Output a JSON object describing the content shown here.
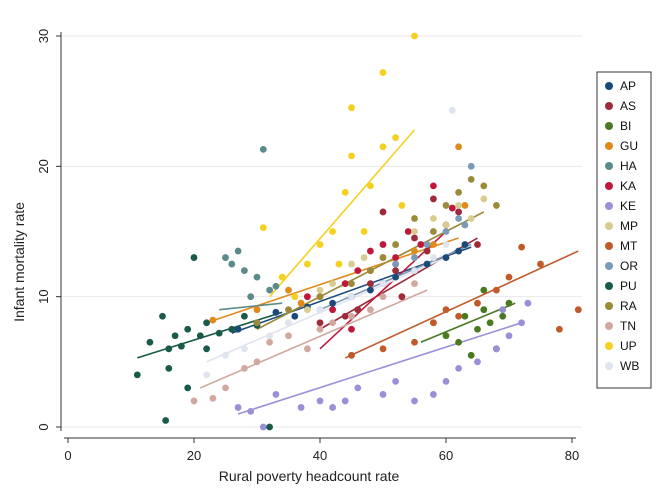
{
  "chart_data": {
    "type": "scatter",
    "xlabel": "Rural poverty headcount rate",
    "ylabel": "Infant mortality rate",
    "xlim": [
      0,
      80
    ],
    "ylim": [
      0,
      30
    ],
    "x_ticks": [
      "0",
      "20",
      "40",
      "60",
      "80"
    ],
    "y_ticks": [
      "0",
      "10",
      "20",
      "30"
    ],
    "grid": true,
    "legend_position": "right",
    "series": [
      {
        "name": "AP",
        "color": "#1a4a7a",
        "points": [
          [
            27,
            7.5
          ],
          [
            30,
            8
          ],
          [
            33,
            8.8
          ],
          [
            36,
            8.5
          ],
          [
            38,
            9.2
          ],
          [
            42,
            9.5
          ],
          [
            45,
            10
          ],
          [
            48,
            10.5
          ],
          [
            50,
            11
          ],
          [
            52,
            11.5
          ],
          [
            55,
            12
          ],
          [
            57,
            12.5
          ],
          [
            60,
            13
          ],
          [
            62,
            13.5
          ],
          [
            63,
            14
          ]
        ],
        "fit": [
          [
            26,
            7.2
          ],
          [
            64,
            13.8
          ]
        ]
      },
      {
        "name": "AS",
        "color": "#9e2a3a",
        "points": [
          [
            40,
            8
          ],
          [
            44,
            8.5
          ],
          [
            46,
            9
          ],
          [
            48,
            11
          ],
          [
            50,
            16.5
          ],
          [
            52,
            12
          ],
          [
            53,
            10
          ],
          [
            55,
            14.5
          ],
          [
            57,
            13.5
          ],
          [
            58,
            17.5
          ],
          [
            60,
            15.5
          ],
          [
            62,
            16.5
          ],
          [
            65,
            14
          ]
        ],
        "fit": [
          [
            40,
            7.5
          ],
          [
            65,
            14.5
          ]
        ]
      },
      {
        "name": "BI",
        "color": "#4a7a20",
        "points": [
          [
            58,
            8
          ],
          [
            60,
            7
          ],
          [
            62,
            6.5
          ],
          [
            63,
            8.5
          ],
          [
            64,
            5.5
          ],
          [
            65,
            7.5
          ],
          [
            66,
            9
          ],
          [
            67,
            8
          ],
          [
            68,
            6
          ],
          [
            69,
            8.5
          ],
          [
            70,
            9.5
          ],
          [
            66,
            10.5
          ]
        ],
        "fit": [
          [
            56,
            6.5
          ],
          [
            71,
            9.5
          ]
        ]
      },
      {
        "name": "GU",
        "color": "#e08a1a",
        "points": [
          [
            23,
            8.2
          ],
          [
            30,
            9
          ],
          [
            35,
            10.5
          ],
          [
            37,
            9.5
          ],
          [
            40,
            10
          ],
          [
            44,
            11
          ],
          [
            48,
            12
          ],
          [
            52,
            12.5
          ],
          [
            55,
            13.5
          ],
          [
            58,
            14
          ],
          [
            62,
            21.5
          ],
          [
            63,
            17
          ]
        ],
        "fit": [
          [
            22,
            8
          ],
          [
            62,
            14.5
          ]
        ]
      },
      {
        "name": "HA",
        "color": "#5a8a8a",
        "points": [
          [
            25,
            13
          ],
          [
            26,
            12.5
          ],
          [
            28,
            12
          ],
          [
            30,
            11.5
          ],
          [
            31,
            21.3
          ],
          [
            32,
            10.5
          ],
          [
            29,
            10
          ],
          [
            33,
            10.8
          ],
          [
            27,
            13.5
          ]
        ],
        "fit": [
          [
            24,
            9
          ],
          [
            34,
            9.5
          ]
        ]
      },
      {
        "name": "KA",
        "color": "#c0183a",
        "points": [
          [
            38,
            10
          ],
          [
            42,
            9
          ],
          [
            44,
            11
          ],
          [
            46,
            12
          ],
          [
            48,
            13.5
          ],
          [
            50,
            14
          ],
          [
            52,
            13
          ],
          [
            54,
            15
          ],
          [
            56,
            14
          ],
          [
            58,
            18.5
          ],
          [
            61,
            16.8
          ],
          [
            45,
            7.5
          ]
        ],
        "fit": [
          [
            40,
            6
          ],
          [
            60,
            15
          ]
        ]
      },
      {
        "name": "KE",
        "color": "#9a90d8",
        "points": [
          [
            27,
            1.5
          ],
          [
            29,
            1.2
          ],
          [
            31,
            0
          ],
          [
            33,
            2.5
          ],
          [
            37,
            1.5
          ],
          [
            40,
            2
          ],
          [
            42,
            1.5
          ],
          [
            44,
            2
          ],
          [
            46,
            3
          ],
          [
            50,
            2.5
          ],
          [
            52,
            3.5
          ],
          [
            55,
            2
          ],
          [
            58,
            2.5
          ],
          [
            60,
            3.5
          ],
          [
            62,
            4.5
          ],
          [
            65,
            5
          ],
          [
            68,
            6
          ],
          [
            70,
            7
          ],
          [
            72,
            8
          ],
          [
            73,
            9.5
          ],
          [
            69,
            9
          ]
        ],
        "fit": [
          [
            27,
            1
          ],
          [
            72,
            8
          ]
        ]
      },
      {
        "name": "MP",
        "color": "#d8cc90",
        "points": [
          [
            35,
            8
          ],
          [
            38,
            9
          ],
          [
            40,
            10.5
          ],
          [
            42,
            11
          ],
          [
            45,
            12.5
          ],
          [
            47,
            13
          ],
          [
            50,
            13
          ],
          [
            52,
            14
          ],
          [
            55,
            15
          ],
          [
            58,
            16
          ],
          [
            60,
            15.5
          ],
          [
            62,
            17
          ],
          [
            64,
            16
          ],
          [
            66,
            17.5
          ]
        ],
        "fit": [
          [
            34,
            8.5
          ],
          [
            66,
            16.5
          ]
        ]
      },
      {
        "name": "MT",
        "color": "#c05a2a",
        "points": [
          [
            45,
            5.5
          ],
          [
            50,
            6
          ],
          [
            55,
            6.5
          ],
          [
            58,
            8
          ],
          [
            60,
            9
          ],
          [
            62,
            8.5
          ],
          [
            65,
            9.5
          ],
          [
            68,
            10.5
          ],
          [
            70,
            11.5
          ],
          [
            72,
            13.8
          ],
          [
            75,
            12.5
          ],
          [
            78,
            7.5
          ],
          [
            81,
            9
          ]
        ],
        "fit": [
          [
            44,
            5.3
          ],
          [
            81,
            13.5
          ]
        ]
      },
      {
        "name": "OR",
        "color": "#7a9ab8",
        "points": [
          [
            40,
            9
          ],
          [
            45,
            10
          ],
          [
            50,
            11
          ],
          [
            52,
            12.5
          ],
          [
            55,
            13
          ],
          [
            57,
            14
          ],
          [
            60,
            15
          ],
          [
            62,
            16
          ],
          [
            63,
            15.5
          ],
          [
            64,
            20
          ]
        ],
        "fit": [
          [
            40,
            9
          ],
          [
            64,
            14
          ]
        ]
      },
      {
        "name": "PU",
        "color": "#1a5a4a",
        "points": [
          [
            11,
            4
          ],
          [
            13,
            6.5
          ],
          [
            15,
            8.5
          ],
          [
            15.5,
            0.5
          ],
          [
            16,
            6
          ],
          [
            17,
            7
          ],
          [
            18,
            6.2
          ],
          [
            19,
            7.5
          ],
          [
            20,
            13
          ],
          [
            21,
            7
          ],
          [
            22,
            8
          ],
          [
            24,
            7.2
          ],
          [
            26,
            7.5
          ],
          [
            28,
            8.5
          ],
          [
            30,
            7.8
          ],
          [
            32,
            0
          ],
          [
            22,
            6
          ],
          [
            16,
            4.5
          ],
          [
            19,
            3
          ]
        ],
        "fit": [
          [
            11,
            5.3
          ],
          [
            34,
            8.8
          ]
        ]
      },
      {
        "name": "RA",
        "color": "#9a8a3a",
        "points": [
          [
            30,
            8
          ],
          [
            35,
            9
          ],
          [
            40,
            10
          ],
          [
            45,
            11
          ],
          [
            48,
            12
          ],
          [
            50,
            13
          ],
          [
            52,
            14
          ],
          [
            55,
            16
          ],
          [
            58,
            15
          ],
          [
            60,
            17
          ],
          [
            62,
            18
          ],
          [
            64,
            19
          ],
          [
            66,
            18.5
          ],
          [
            68,
            17
          ]
        ],
        "fit": [
          [
            30,
            7.5
          ],
          [
            66,
            16.5
          ]
        ]
      },
      {
        "name": "TN",
        "color": "#d0a8a0",
        "points": [
          [
            20,
            2
          ],
          [
            23,
            2.2
          ],
          [
            25,
            3
          ],
          [
            28,
            4.5
          ],
          [
            30,
            5
          ],
          [
            32,
            6.5
          ],
          [
            35,
            7
          ],
          [
            38,
            6
          ],
          [
            40,
            7.5
          ],
          [
            42,
            8
          ],
          [
            45,
            8.5
          ],
          [
            48,
            9
          ],
          [
            50,
            10
          ],
          [
            55,
            11
          ]
        ],
        "fit": [
          [
            21,
            3
          ],
          [
            57,
            10.5
          ]
        ]
      },
      {
        "name": "UP",
        "color": "#f5d020",
        "points": [
          [
            31,
            15.3
          ],
          [
            34,
            11.5
          ],
          [
            36,
            10
          ],
          [
            38,
            12.5
          ],
          [
            40,
            14
          ],
          [
            42,
            15
          ],
          [
            44,
            18
          ],
          [
            45,
            24.5
          ],
          [
            45,
            20.8
          ],
          [
            48,
            18.5
          ],
          [
            50,
            27.2
          ],
          [
            50,
            21.5
          ],
          [
            52,
            22.2
          ],
          [
            55,
            30
          ],
          [
            53,
            17
          ],
          [
            47,
            15
          ],
          [
            43,
            12.5
          ]
        ],
        "fit": [
          [
            32,
            10
          ],
          [
            55,
            22.8
          ]
        ]
      },
      {
        "name": "WB",
        "color": "#dfe4ef",
        "points": [
          [
            22,
            4
          ],
          [
            25,
            5.5
          ],
          [
            28,
            6
          ],
          [
            32,
            7
          ],
          [
            35,
            8
          ],
          [
            40,
            9
          ],
          [
            45,
            10
          ],
          [
            50,
            11
          ],
          [
            55,
            12
          ],
          [
            58,
            13
          ],
          [
            60,
            14
          ],
          [
            61,
            24.3
          ]
        ],
        "fit": [
          [
            22,
            5
          ],
          [
            60,
            13
          ]
        ]
      }
    ]
  }
}
